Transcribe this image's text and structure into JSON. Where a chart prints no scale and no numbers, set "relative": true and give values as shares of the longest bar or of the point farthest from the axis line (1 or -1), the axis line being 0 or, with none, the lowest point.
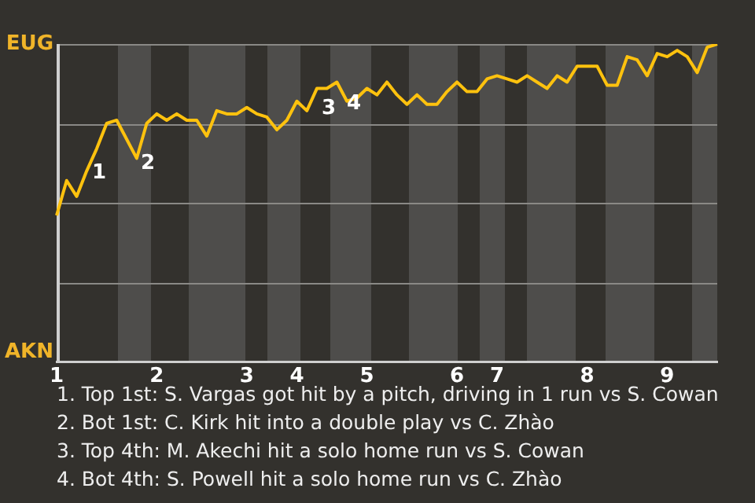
{
  "chart_data": {
    "type": "line",
    "color": "#ffc20e",
    "relative": true,
    "categories": [
      "1",
      null,
      null,
      null,
      null,
      null,
      null,
      null,
      null,
      null,
      "2",
      null,
      null,
      null,
      null,
      null,
      null,
      null,
      null,
      "3",
      null,
      null,
      null,
      null,
      "4",
      null,
      null,
      null,
      null,
      null,
      null,
      "5",
      null,
      null,
      null,
      null,
      null,
      null,
      null,
      null,
      "6",
      null,
      null,
      null,
      "7",
      null,
      null,
      null,
      null,
      null,
      null,
      null,
      null,
      "8",
      null,
      null,
      null,
      null,
      null,
      null,
      null,
      "9",
      null,
      null,
      null,
      null,
      null
    ],
    "values": [
      0.46,
      0.57,
      0.52,
      0.6,
      0.67,
      0.75,
      0.76,
      0.7,
      0.64,
      0.75,
      0.78,
      0.76,
      0.78,
      0.76,
      0.76,
      0.71,
      0.79,
      0.78,
      0.78,
      0.8,
      0.78,
      0.77,
      0.73,
      0.76,
      0.82,
      0.79,
      0.86,
      0.86,
      0.88,
      0.82,
      0.83,
      0.86,
      0.84,
      0.88,
      0.84,
      0.81,
      0.84,
      0.81,
      0.81,
      0.85,
      0.88,
      0.85,
      0.85,
      0.89,
      0.9,
      0.89,
      0.88,
      0.9,
      0.88,
      0.86,
      0.9,
      0.88,
      0.93,
      0.93,
      0.93,
      0.87,
      0.87,
      0.96,
      0.95,
      0.9,
      0.97,
      0.96,
      0.98,
      0.96,
      0.91,
      0.99,
      1.0
    ],
    "annotations": [
      "EUG",
      "AKN",
      "1",
      "2",
      "3",
      "4",
      "1. Top 1st: S. Vargas got hit by a pitch, driving in 1 run vs S. Cowan",
      "2. Bot 1st: C. Kirk hit into a double play vs C. Zhào",
      "3. Top 4th: M. Akechi hit a solo home run vs S. Cowan",
      "4. Bot 4th: S. Powell hit a solo home run vs C. Zhào"
    ]
  }
}
